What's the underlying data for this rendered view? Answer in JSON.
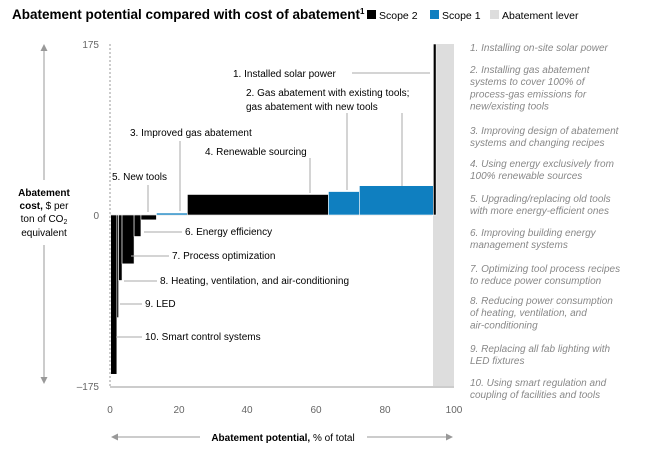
{
  "chart_data": {
    "type": "bar",
    "title": "Abatement potential compared with cost of abatement",
    "title_footnote": "1",
    "legend": [
      {
        "label": "Scope 2",
        "color": "#000000"
      },
      {
        "label": "Scope 1",
        "color": "#0f7fc0"
      },
      {
        "label": "Abatement lever",
        "color": "#dddddd"
      }
    ],
    "xlabel_bold": "Abatement potential,",
    "xlabel_rest": " % of total",
    "ylabel_bold_1": "Abatement",
    "ylabel_bold_2": "cost,",
    "ylabel_rest_2": " $ per",
    "ylabel_3_pre": "ton of CO",
    "ylabel_3_sub": "2",
    "ylabel_4": "equivalent",
    "xlim": [
      0,
      100
    ],
    "ylim": [
      -175,
      175
    ],
    "xticks": [
      "0",
      "20",
      "40",
      "60",
      "80",
      "100"
    ],
    "yticks": [
      "175",
      "0",
      "–175"
    ],
    "levers": [
      {
        "id": "10",
        "label": "10. Smart control systems",
        "scope": "Scope 2",
        "x_start": 0.2,
        "x_end": 2.0,
        "cost": -163
      },
      {
        "id": "9",
        "label": "9. LED",
        "scope": "Scope 2",
        "x_start": 2.0,
        "x_end": 2.5,
        "cost": -105
      },
      {
        "id": "8",
        "label": "8. Heating, ventilation, and air-conditioning",
        "scope": "Scope 2",
        "x_start": 2.5,
        "x_end": 3.5,
        "cost": -67
      },
      {
        "id": "7",
        "label": "7. Process optimization",
        "scope": "Scope 2",
        "x_start": 3.5,
        "x_end": 7.0,
        "cost": -50
      },
      {
        "id": "6",
        "label": "6. Energy efficiency",
        "scope": "Scope 2",
        "x_start": 7.0,
        "x_end": 9.0,
        "cost": -22
      },
      {
        "id": "5",
        "label": "5. New tools",
        "scope": "Scope 2",
        "x_start": 9.0,
        "x_end": 13.5,
        "cost": -5
      },
      {
        "id": "3",
        "label": "3. Improved gas abatement",
        "scope": "Scope 1",
        "x_start": 13.5,
        "x_end": 22.5,
        "cost": 2
      },
      {
        "id": "4",
        "label": "4. Renewable sourcing",
        "scope": "Scope 2",
        "x_start": 22.5,
        "x_end": 63.5,
        "cost": 21
      },
      {
        "id": "2a",
        "label": "2. Gas abatement with existing tools; gas abatement with new tools",
        "scope": "Scope 1",
        "x_start": 63.5,
        "x_end": 72.5,
        "cost": 24
      },
      {
        "id": "2b",
        "label": "",
        "scope": "Scope 1",
        "x_start": 72.5,
        "x_end": 94.0,
        "cost": 30
      },
      {
        "id": "1",
        "label": "1. Installed solar power",
        "scope": "Scope 2",
        "x_start": 94.0,
        "x_end": 94.8,
        "cost": 175
      }
    ],
    "annotations": [
      {
        "lines": [
          "1. Installed solar power"
        ]
      },
      {
        "lines": [
          "2. Gas abatement with existing tools;",
          "gas abatement with new tools"
        ]
      },
      {
        "lines": [
          "3. Improved gas abatement"
        ]
      },
      {
        "lines": [
          "4. Renewable sourcing"
        ]
      },
      {
        "lines": [
          "5. New tools"
        ]
      },
      {
        "lines": [
          "6. Energy efficiency"
        ]
      },
      {
        "lines": [
          "7. Process optimization"
        ]
      },
      {
        "lines": [
          "8. Heating, ventilation, and air-conditioning"
        ]
      },
      {
        "lines": [
          "9. LED"
        ]
      },
      {
        "lines": [
          "10. Smart control systems"
        ]
      }
    ],
    "lever_descriptions": [
      [
        "1. Installing on-site solar power"
      ],
      [
        "2. Installing gas abatement",
        "systems to cover 100% of",
        "process-gas emissions for",
        "new/existing tools"
      ],
      [
        "3. Improving design of abatement",
        "systems and changing recipes"
      ],
      [
        "4. Using energy exclusively from",
        "100% renewable sources"
      ],
      [
        "5. Upgrading/replacing old tools",
        "with more energy-efficient ones"
      ],
      [
        "6. Improving building energy",
        "management systems"
      ],
      [
        "7. Optimizing tool process recipes",
        "to reduce power consumption"
      ],
      [
        "8. Reducing power consumption",
        "of heating, ventilation, and",
        "air-conditioning"
      ],
      [
        "9. Replacing all fab lighting with",
        "LED fixtures"
      ],
      [
        "10. Using smart regulation and",
        "coupling of facilities and tools"
      ]
    ],
    "colors": {
      "scope2": "#000000",
      "scope1": "#0f7fc0",
      "lever_band": "#dddddd",
      "axis": "#999999",
      "leader": "#aaaaaa",
      "description": "#888888"
    }
  }
}
